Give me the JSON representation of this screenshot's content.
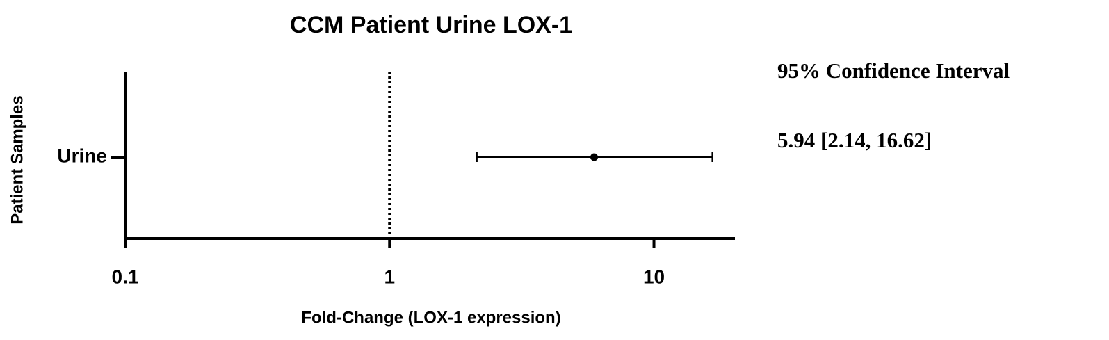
{
  "chart_data": {
    "type": "forest",
    "title": "CCM Patient Urine LOX-1",
    "x_label": "Fold-Change (LOX-1 expression)",
    "y_label": "Patient Samples",
    "categories": [
      "Urine"
    ],
    "values": [
      5.94
    ],
    "ci_low": [
      2.14
    ],
    "ci_high": [
      16.62
    ],
    "value_labels": [
      "5.94 [2.14, 16.62]"
    ],
    "ci_label": "95% Confidence Interval",
    "xscale": "log",
    "xlim": [
      0.1,
      20
    ],
    "xticks": [
      0.1,
      1,
      10
    ],
    "reference": 1,
    "color": "#000000"
  }
}
